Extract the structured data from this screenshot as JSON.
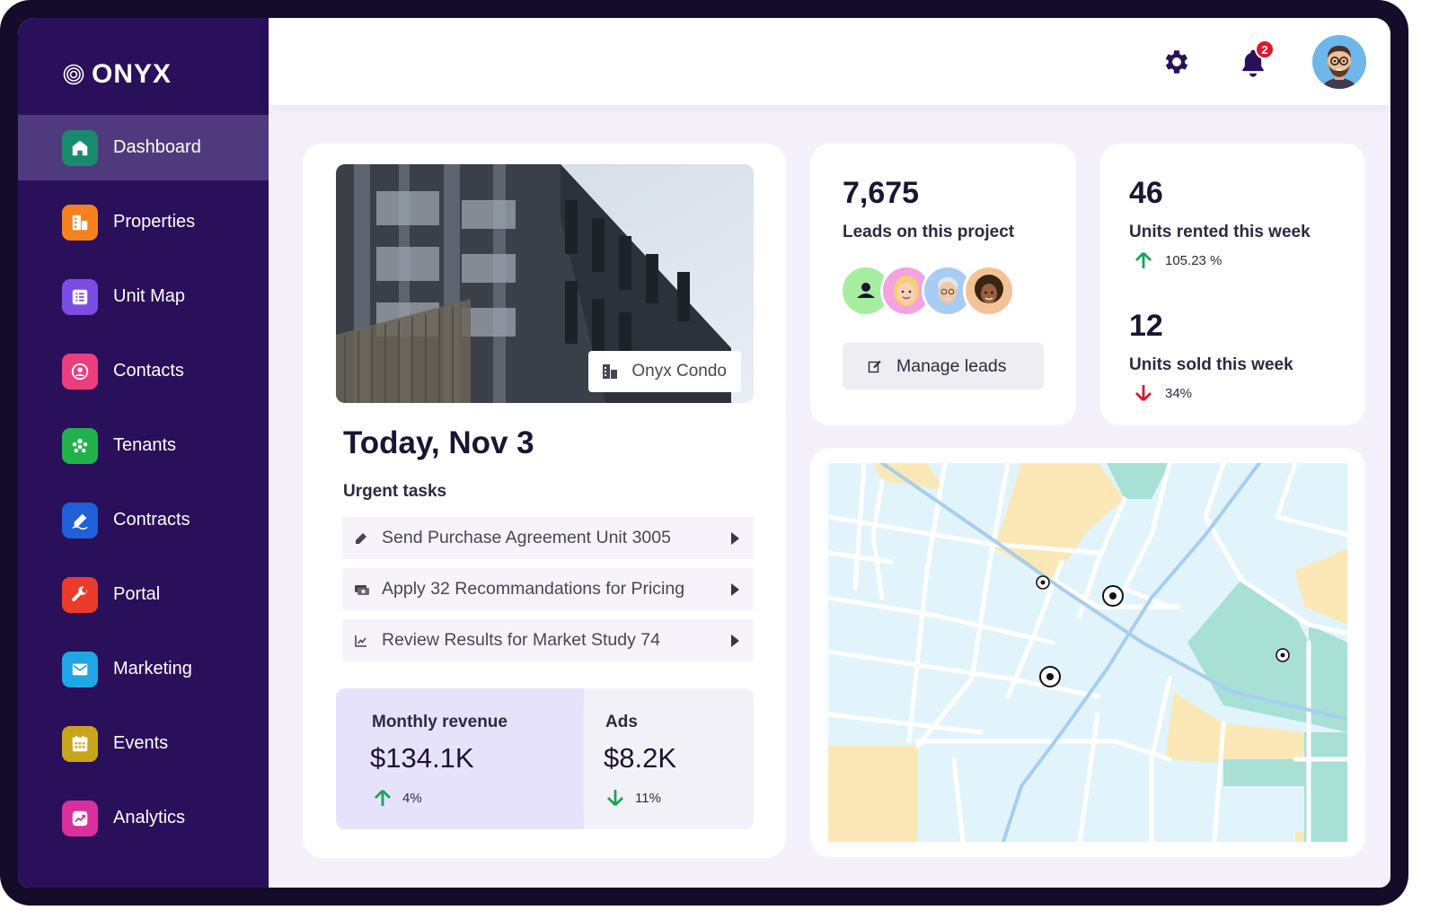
{
  "app": {
    "brand": "ONYX"
  },
  "sidebar": {
    "items": [
      {
        "label": "Dashboard",
        "icon": "home-icon",
        "color": "#1a8a6e",
        "active": true
      },
      {
        "label": "Properties",
        "icon": "building-icon",
        "color": "#f5821f",
        "active": false
      },
      {
        "label": "Unit Map",
        "icon": "list-icon",
        "color": "#7b4de3",
        "active": false
      },
      {
        "label": "Contacts",
        "icon": "user-circle-icon",
        "color": "#ec3e7f",
        "active": false
      },
      {
        "label": "Tenants",
        "icon": "people-icon",
        "color": "#21b24b",
        "active": false
      },
      {
        "label": "Contracts",
        "icon": "signature-icon",
        "color": "#1f5fd8",
        "active": false
      },
      {
        "label": "Portal",
        "icon": "wrench-icon",
        "color": "#ea3b2b",
        "active": false
      },
      {
        "label": "Marketing",
        "icon": "mail-icon",
        "color": "#1fa6e6",
        "active": false
      },
      {
        "label": "Events",
        "icon": "calendar-icon",
        "color": "#c9a51d",
        "active": false
      },
      {
        "label": "Analytics",
        "icon": "chart-icon",
        "color": "#d9309e",
        "active": false
      }
    ]
  },
  "header": {
    "notifications_count": "2"
  },
  "property": {
    "name": "Onyx Condo"
  },
  "today": {
    "title": "Today, Nov 3",
    "urgent_label": "Urgent tasks",
    "tasks": [
      {
        "label": "Send Purchase Agreement Unit 3005",
        "icon": "pen-icon"
      },
      {
        "label": "Apply 32 Recommandations for Pricing",
        "icon": "money-icon"
      },
      {
        "label": "Review Results for Market Study 74",
        "icon": "trend-icon"
      }
    ]
  },
  "metrics": {
    "revenue": {
      "label": "Monthly revenue",
      "value": "$134.1K",
      "change": "4%",
      "direction": "up"
    },
    "ads": {
      "label": "Ads",
      "value": "$8.2K",
      "change": "11%",
      "direction": "down"
    }
  },
  "leads": {
    "count": "7,675",
    "label": "Leads on this project",
    "button": "Manage leads"
  },
  "units": {
    "rented": {
      "value": "46",
      "label": "Units rented this week",
      "change": "105.23 %",
      "direction": "up"
    },
    "sold": {
      "value": "12",
      "label": "Units sold this week",
      "change": "34%",
      "direction": "down"
    }
  },
  "colors": {
    "up": "#18a455",
    "down": "#e0162b",
    "sidebar": "#2a0f5b",
    "active": "#4f3a7e",
    "accent": "#2a0f5b"
  }
}
